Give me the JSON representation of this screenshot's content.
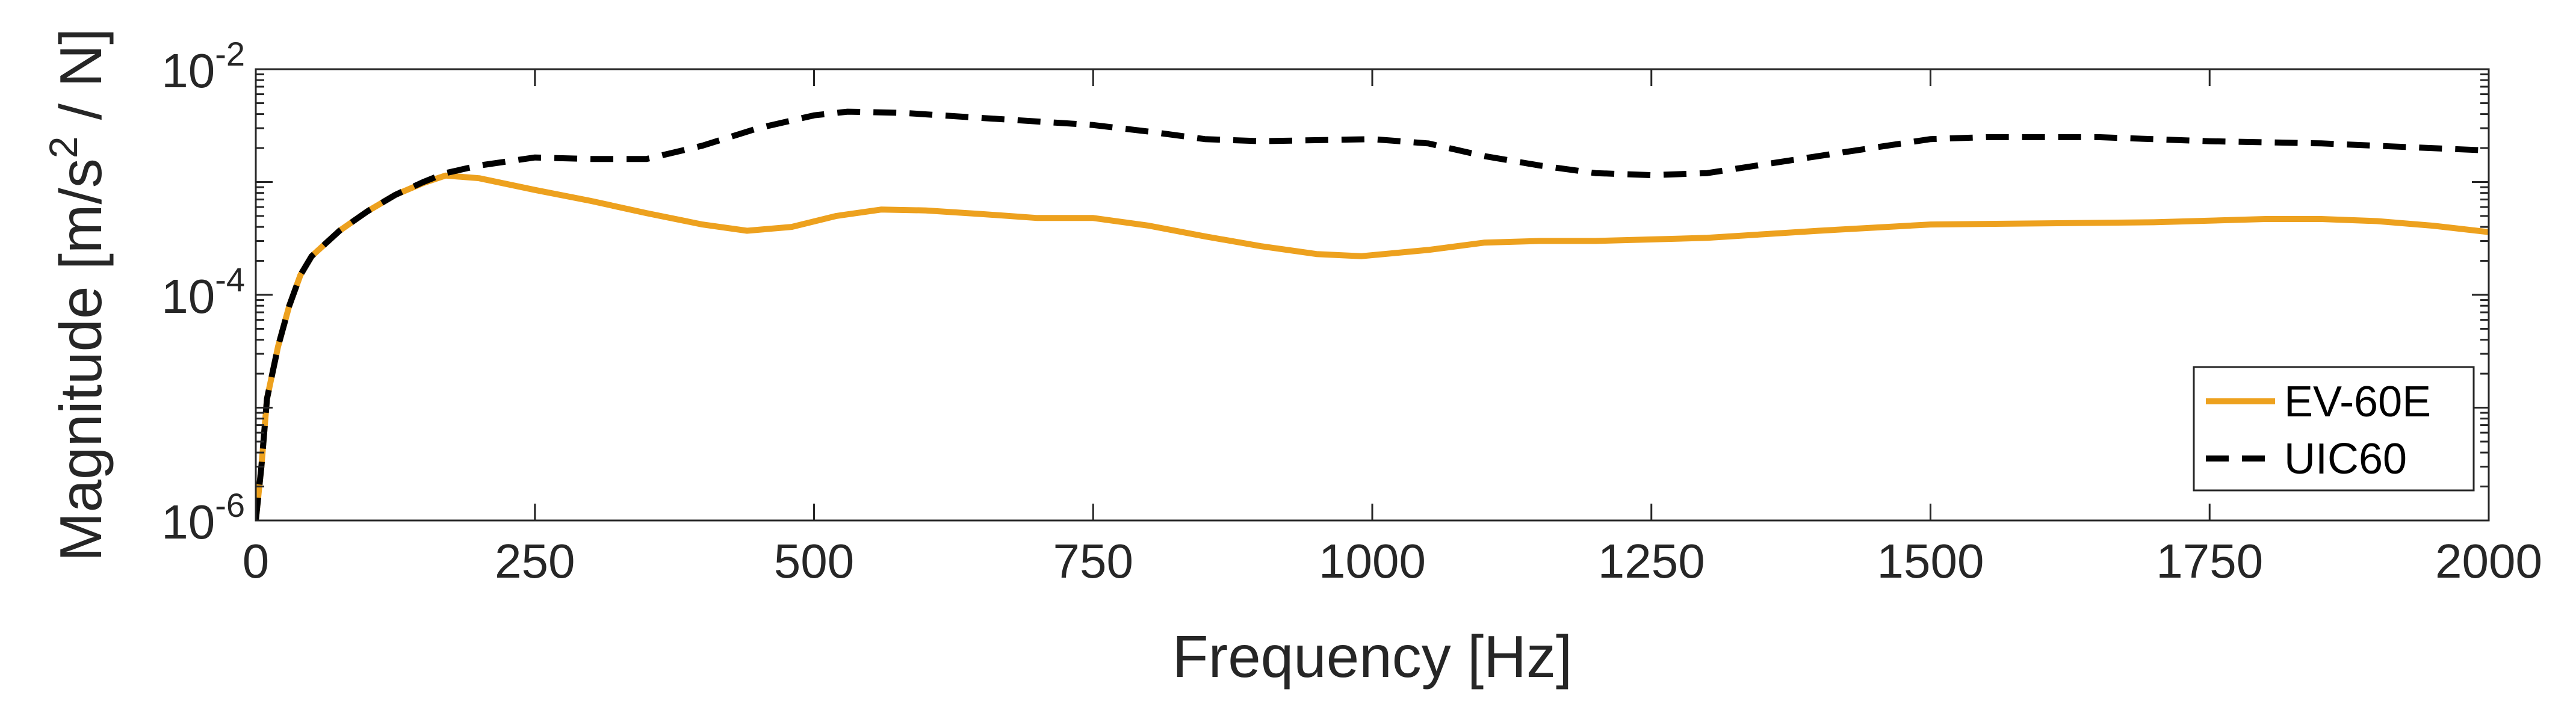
{
  "chart_data": {
    "type": "line",
    "title": "",
    "xlabel": "Frequency [Hz]",
    "ylabel": {
      "main": "Magnitude [m/s",
      "sup": "2",
      "tail": " / N]"
    },
    "xlim": [
      0,
      2000
    ],
    "ylim": [
      1e-06,
      0.01
    ],
    "yscale": "log",
    "grid": false,
    "legend_position": "bottom-right",
    "x_ticks": [
      0,
      250,
      500,
      750,
      1000,
      1250,
      1500,
      1750,
      2000
    ],
    "x_tick_labels": [
      "0",
      "250",
      "500",
      "750",
      "1000",
      "1250",
      "1500",
      "1750",
      "2000"
    ],
    "y_ticks": [
      1e-06,
      0.0001,
      0.01
    ],
    "y_tick_labels": [
      {
        "base": "10",
        "exp": "-6"
      },
      {
        "base": "10",
        "exp": "-4"
      },
      {
        "base": "10",
        "exp": "-2"
      }
    ],
    "series": [
      {
        "name": "EV-60E",
        "color": "#EDA11E",
        "style": "solid",
        "points": [
          [
            0,
            1e-06
          ],
          [
            5,
            3e-06
          ],
          [
            10,
            1.2e-05
          ],
          [
            20,
            3.5e-05
          ],
          [
            30,
            8e-05
          ],
          [
            40,
            0.00015
          ],
          [
            50,
            0.00022
          ],
          [
            75,
            0.00037
          ],
          [
            100,
            0.00055
          ],
          [
            125,
            0.00077
          ],
          [
            150,
            0.00098
          ],
          [
            170,
            0.00114
          ],
          [
            200,
            0.00108
          ],
          [
            250,
            0.00085
          ],
          [
            300,
            0.00068
          ],
          [
            350,
            0.00053
          ],
          [
            400,
            0.00042
          ],
          [
            440,
            0.00037
          ],
          [
            480,
            0.0004
          ],
          [
            520,
            0.0005
          ],
          [
            560,
            0.00057
          ],
          [
            600,
            0.00056
          ],
          [
            650,
            0.00052
          ],
          [
            700,
            0.00048
          ],
          [
            750,
            0.00048
          ],
          [
            800,
            0.00041
          ],
          [
            850,
            0.00033
          ],
          [
            900,
            0.00027
          ],
          [
            950,
            0.00023
          ],
          [
            990,
            0.00022
          ],
          [
            1050,
            0.00025
          ],
          [
            1100,
            0.00029
          ],
          [
            1150,
            0.0003
          ],
          [
            1200,
            0.0003
          ],
          [
            1300,
            0.00032
          ],
          [
            1400,
            0.00037
          ],
          [
            1500,
            0.00042
          ],
          [
            1600,
            0.00043
          ],
          [
            1700,
            0.00044
          ],
          [
            1800,
            0.00047
          ],
          [
            1850,
            0.00047
          ],
          [
            1900,
            0.00045
          ],
          [
            1950,
            0.00041
          ],
          [
            2000,
            0.00036
          ]
        ]
      },
      {
        "name": "UIC60",
        "color": "#000000",
        "style": "dashed",
        "points": [
          [
            0,
            1e-06
          ],
          [
            5,
            3e-06
          ],
          [
            10,
            1.2e-05
          ],
          [
            20,
            3.5e-05
          ],
          [
            30,
            8e-05
          ],
          [
            40,
            0.00015
          ],
          [
            50,
            0.00022
          ],
          [
            75,
            0.00037
          ],
          [
            100,
            0.00055
          ],
          [
            125,
            0.00077
          ],
          [
            150,
            0.001
          ],
          [
            170,
            0.0012
          ],
          [
            200,
            0.0014
          ],
          [
            250,
            0.00165
          ],
          [
            300,
            0.0016
          ],
          [
            350,
            0.0016
          ],
          [
            400,
            0.0021
          ],
          [
            450,
            0.003
          ],
          [
            500,
            0.0039
          ],
          [
            530,
            0.0042
          ],
          [
            580,
            0.0041
          ],
          [
            650,
            0.0037
          ],
          [
            750,
            0.0032
          ],
          [
            800,
            0.0028
          ],
          [
            850,
            0.0024
          ],
          [
            900,
            0.0023
          ],
          [
            1000,
            0.0024
          ],
          [
            1050,
            0.0022
          ],
          [
            1100,
            0.0017
          ],
          [
            1150,
            0.0014
          ],
          [
            1200,
            0.0012
          ],
          [
            1250,
            0.00115
          ],
          [
            1300,
            0.0012
          ],
          [
            1400,
            0.0017
          ],
          [
            1500,
            0.0024
          ],
          [
            1550,
            0.0025
          ],
          [
            1650,
            0.0025
          ],
          [
            1750,
            0.0023
          ],
          [
            1850,
            0.0022
          ],
          [
            2000,
            0.0019
          ]
        ]
      }
    ]
  }
}
